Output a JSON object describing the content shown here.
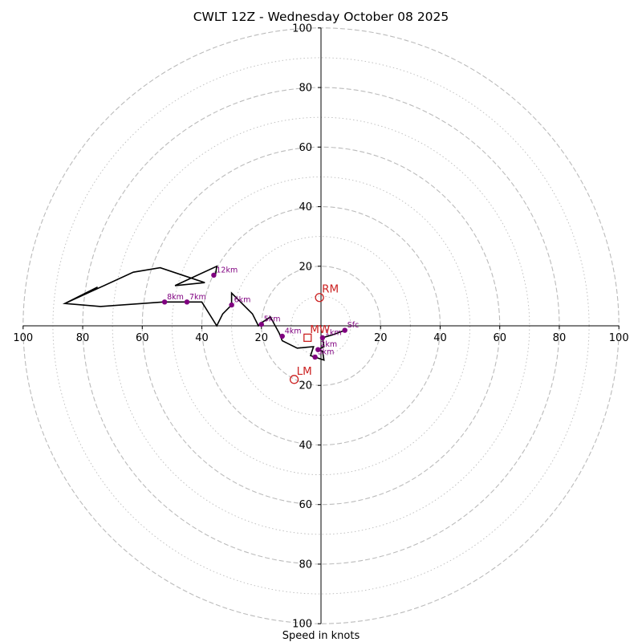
{
  "chart_data": {
    "type": "hodograph",
    "title": "CWLT 12Z - Wednesday October 08 2025",
    "xlabel": "Speed in knots",
    "units": "knots",
    "range": [
      -100,
      100
    ],
    "ring_major": [
      20,
      40,
      60,
      80,
      100
    ],
    "ring_minor": [
      10,
      30,
      50,
      70,
      90
    ],
    "x_tick_labels": [
      "100",
      "80",
      "60",
      "40",
      "20",
      "20",
      "40",
      "60",
      "80",
      "100"
    ],
    "y_tick_labels": [
      "100",
      "80",
      "60",
      "40",
      "20",
      "20",
      "40",
      "60",
      "80",
      "100"
    ],
    "trace": [
      [
        8,
        -1.5
      ],
      [
        4,
        -3
      ],
      [
        0.5,
        -4
      ],
      [
        1,
        -7
      ],
      [
        -1,
        -8
      ],
      [
        0.5,
        -8.5
      ],
      [
        1,
        -11.5
      ],
      [
        -2,
        -10.5
      ],
      [
        -3.5,
        -10
      ],
      [
        -2.5,
        -7
      ],
      [
        -8,
        -7.5
      ],
      [
        -13,
        -5
      ],
      [
        -14,
        -2.5
      ],
      [
        -17,
        3
      ],
      [
        -20,
        1
      ],
      [
        -21,
        0
      ],
      [
        -23,
        4
      ],
      [
        -30,
        11
      ],
      [
        -30,
        7
      ],
      [
        -33,
        4
      ],
      [
        -35,
        0
      ],
      [
        -40,
        8
      ],
      [
        -45,
        8
      ],
      [
        -53,
        8
      ],
      [
        -74,
        6.5
      ],
      [
        -86,
        7.5
      ],
      [
        -75,
        13
      ],
      [
        -86,
        7.5
      ],
      [
        -63,
        18
      ],
      [
        -54,
        19.5
      ],
      [
        -39,
        14.5
      ],
      [
        -49,
        13.5
      ],
      [
        -35,
        20
      ],
      [
        -35.5,
        16.5
      ]
    ],
    "levels": [
      {
        "label": "Sfc",
        "u": 8,
        "v": -1.5
      },
      {
        "label": "1km",
        "u": 0.5,
        "v": -4
      },
      {
        "label": "2km",
        "u": -1,
        "v": -8
      },
      {
        "label": "3km",
        "u": -2,
        "v": -10.5
      },
      {
        "label": "4km",
        "u": -13,
        "v": -3.5
      },
      {
        "label": "5km",
        "u": -20,
        "v": 0.5
      },
      {
        "label": "6km",
        "u": -30,
        "v": 7
      },
      {
        "label": "7km",
        "u": -45,
        "v": 8
      },
      {
        "label": "8km",
        "u": -52.5,
        "v": 8
      },
      {
        "label": "12km",
        "u": -36,
        "v": 17
      }
    ],
    "storm_motions": [
      {
        "label": "RM",
        "u": -0.5,
        "v": 9.5,
        "marker": "circle"
      },
      {
        "label": "LM",
        "u": -9,
        "v": -18,
        "marker": "circle"
      },
      {
        "label": "MW",
        "u": -4.5,
        "v": -4,
        "marker": "square"
      }
    ],
    "colors": {
      "trace": "#000000",
      "level_marker": "#800080",
      "storm_marker": "#cc2222",
      "grid": "#bbbbbb"
    }
  }
}
